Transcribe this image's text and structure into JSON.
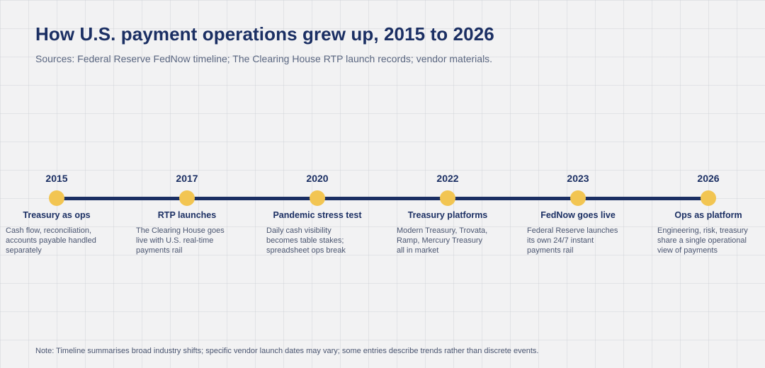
{
  "title": "How U.S. payment operations grew up, 2015 to 2026",
  "subtitle": "Sources: Federal Reserve FedNow timeline; The Clearing House RTP launch records; vendor materials.",
  "colors": {
    "line": "#1b2f63",
    "dot": "#f2c552",
    "title": "#1b2f63",
    "background": "#f2f2f3"
  },
  "events": [
    {
      "year": "2015",
      "title": "Treasury as ops",
      "desc_lines": [
        "Cash flow, reconciliation,",
        "accounts payable handled",
        "separately"
      ]
    },
    {
      "year": "2017",
      "title": "RTP launches",
      "desc_lines": [
        "The Clearing House goes",
        "live with U.S. real-time",
        "payments rail"
      ]
    },
    {
      "year": "2020",
      "title": "Pandemic stress test",
      "desc_lines": [
        "Daily cash visibility",
        "becomes table stakes;",
        "spreadsheet ops break"
      ]
    },
    {
      "year": "2022",
      "title": "Treasury platforms",
      "desc_lines": [
        "Modern Treasury, Trovata,",
        "Ramp, Mercury Treasury",
        "all in market"
      ]
    },
    {
      "year": "2023",
      "title": "FedNow goes live",
      "desc_lines": [
        "Federal Reserve launches",
        "its own 24/7 instant",
        "payments rail"
      ]
    },
    {
      "year": "2026",
      "title": "Ops as platform",
      "desc_lines": [
        "Engineering, risk, treasury",
        "share a single operational",
        "view of payments"
      ]
    }
  ],
  "note": "Note: Timeline summarises broad industry shifts; specific vendor launch dates may vary; some entries describe trends rather than discrete events."
}
